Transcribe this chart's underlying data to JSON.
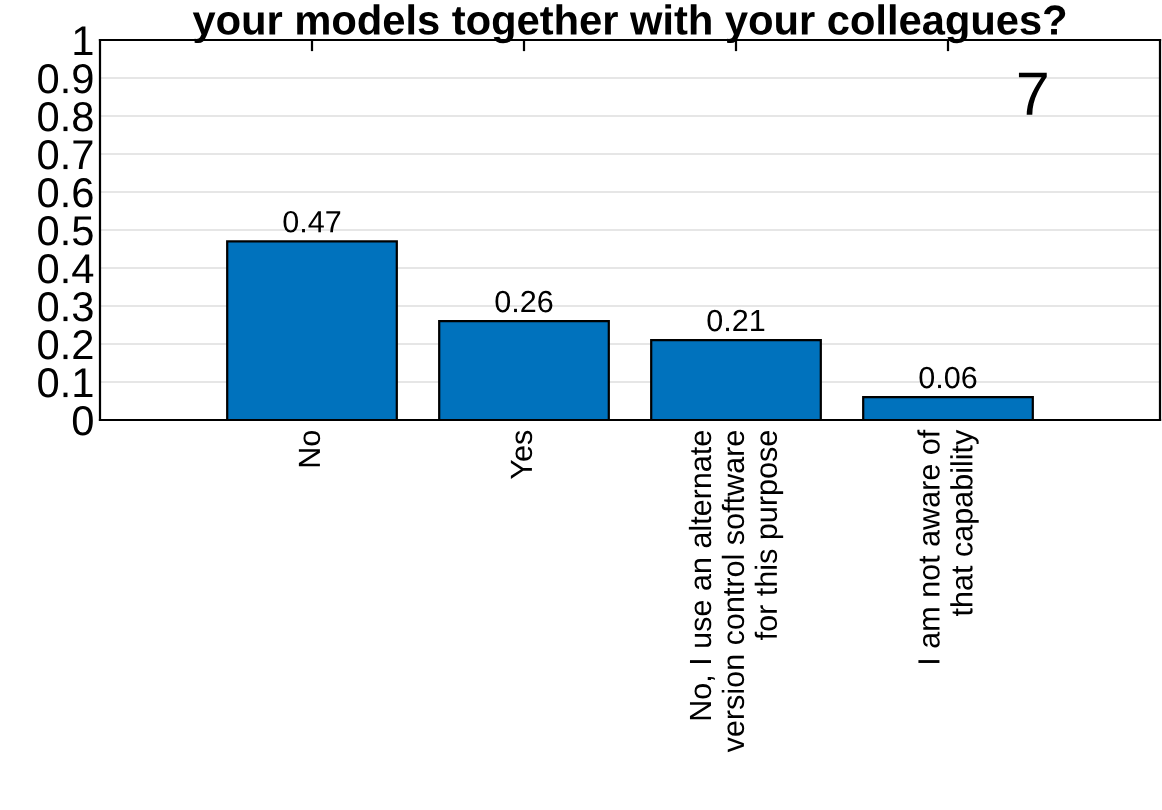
{
  "chart_data": {
    "type": "bar",
    "title": "your models together with your colleagues?",
    "categories": [
      "No",
      "Yes",
      "No, I use an alternate\nversion control software\nfor this purpose",
      "I am not aware of\nthat capability"
    ],
    "values": [
      0.47,
      0.26,
      0.21,
      0.06
    ],
    "color": "#0072bd",
    "data_labels": true,
    "ylim": [
      0,
      1
    ],
    "yticks": [
      0,
      0.1,
      0.2,
      0.3,
      0.4,
      0.5,
      0.6,
      0.7,
      0.8,
      0.9,
      1
    ],
    "grid": "y",
    "annotations": [
      "7"
    ]
  }
}
